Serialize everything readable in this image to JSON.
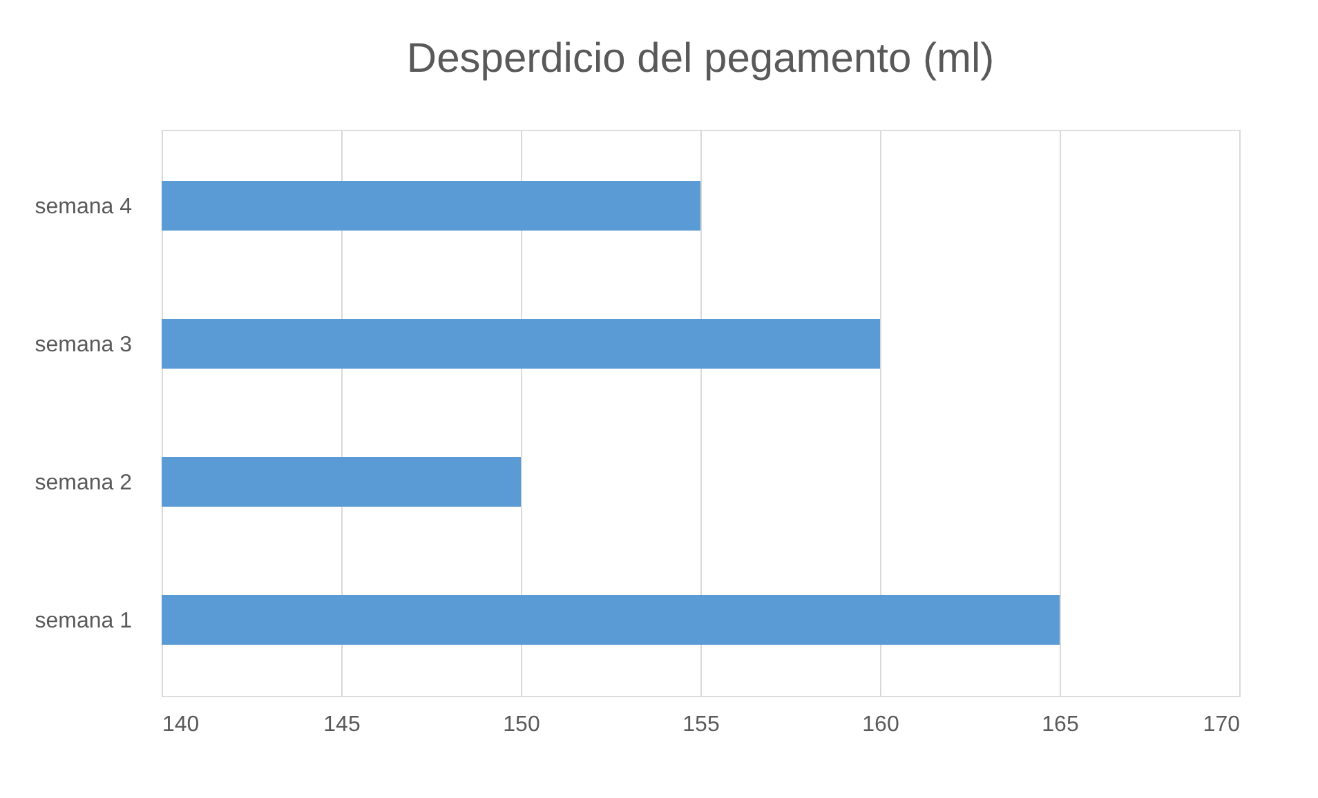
{
  "chart_data": {
    "type": "bar",
    "orientation": "horizontal",
    "title": "Desperdicio del pegamento (ml)",
    "categories": [
      "semana 4",
      "semana 3",
      "semana 2",
      "semana 1"
    ],
    "values": [
      155,
      160,
      150,
      165
    ],
    "color": "#5b9bd5",
    "xlim": [
      140,
      170
    ],
    "xticks": [
      140,
      145,
      150,
      155,
      160,
      165,
      170
    ],
    "grid": "x"
  }
}
